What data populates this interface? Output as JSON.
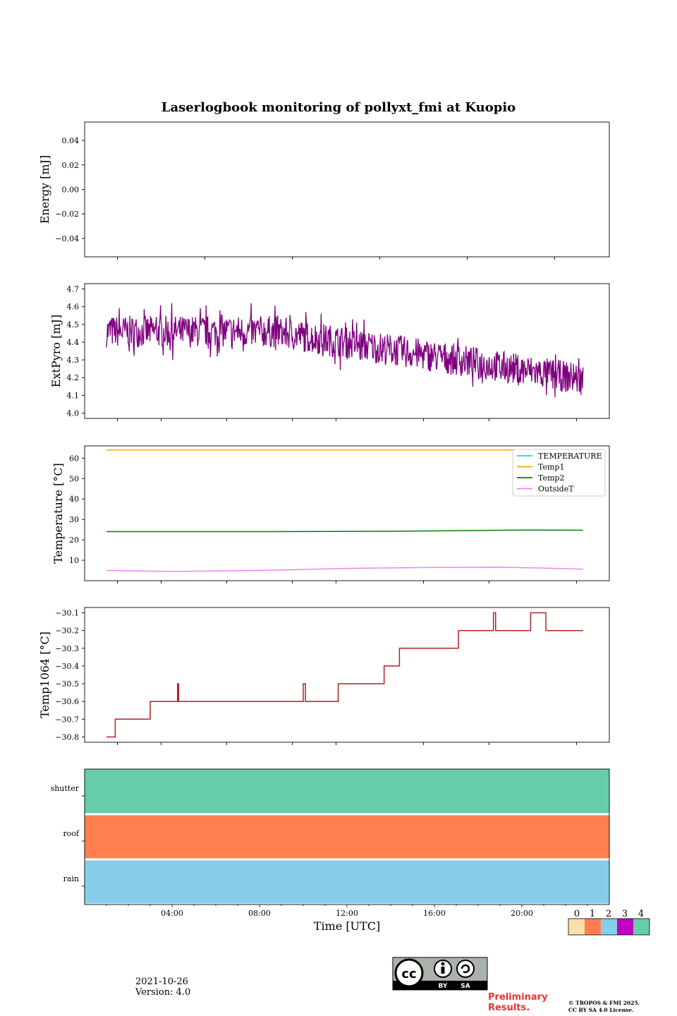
{
  "title": "Laserlogbook monitoring of pollyxt_fmi at Kuopio",
  "footer": {
    "date": "2021-10-26",
    "version": "Version: 4.0",
    "preliminary": "Preliminary Results.",
    "copyright_line1": "© TROPOS & FMI 2025.",
    "copyright_line2": "CC BY SA 4.0 License.",
    "license_badge": "CC BY SA",
    "license_by": "BY",
    "license_sa": "SA"
  },
  "colors": {
    "extpyro": "#800080",
    "temperature": "#00e5ee",
    "temp1": "#ffa500",
    "temp2": "#008000",
    "outsideT": "#ee82ee",
    "temp1064": "#b22222",
    "flag0": "#ffdead",
    "flag1": "#ff7f50",
    "flag2": "#87ceeb",
    "flag3": "#c000c0",
    "flag4": "#66cdaa"
  },
  "chart_data": [
    {
      "type": "line",
      "id": "energy",
      "title": "",
      "ylabel": "Energy [mJ]",
      "ylim": [
        -0.055,
        0.055
      ],
      "yticks": [
        0.04,
        0.02,
        0.0,
        -0.02,
        -0.04
      ],
      "ytick_labels": [
        "0.04",
        "0.02",
        "0.00",
        "−0.02",
        "−0.04"
      ],
      "series": []
    },
    {
      "type": "line",
      "id": "extpyro",
      "ylabel": "ExtPyro [mJ]",
      "ylim": [
        3.97,
        4.73
      ],
      "yticks": [
        4.7,
        4.6,
        4.5,
        4.4,
        4.3,
        4.2,
        4.1,
        4.0
      ],
      "ytick_labels": [
        "4.7",
        "4.6",
        "4.5",
        "4.4",
        "4.3",
        "4.2",
        "4.1",
        "4.0"
      ],
      "x_range_hours": [
        1.0,
        22.8
      ],
      "trend_start": 4.46,
      "trend_end": 4.19,
      "noise_amplitude": 0.09,
      "series_name": "ExtPyro"
    },
    {
      "type": "line",
      "id": "temperature",
      "ylabel": "Temperature [°C]",
      "ylim": [
        0,
        66
      ],
      "yticks": [
        60,
        50,
        40,
        30,
        20,
        10
      ],
      "ytick_labels": [
        "60",
        "50",
        "40",
        "30",
        "20",
        "10"
      ],
      "legend_position": "top-right",
      "series": [
        {
          "name": "TEMPERATURE",
          "x": [],
          "values": []
        },
        {
          "name": "Temp1",
          "x": [
            1.0,
            22.8
          ],
          "values": [
            64.0,
            64.0
          ]
        },
        {
          "name": "Temp2",
          "x": [
            1.0,
            8.0,
            14.0,
            20.0,
            22.8
          ],
          "values": [
            24.0,
            24.0,
            24.2,
            24.8,
            24.7
          ]
        },
        {
          "name": "OutsideT",
          "x": [
            1.0,
            4.0,
            8.0,
            12.0,
            16.0,
            19.0,
            21.0,
            22.8
          ],
          "values": [
            5.0,
            4.5,
            5.0,
            6.0,
            6.5,
            6.6,
            6.2,
            5.6
          ]
        }
      ]
    },
    {
      "type": "line",
      "id": "temp1064",
      "ylabel": "Temp1064 [°C]",
      "ylim": [
        -30.83,
        -30.07
      ],
      "yticks": [
        -30.1,
        -30.2,
        -30.3,
        -30.4,
        -30.5,
        -30.6,
        -30.7,
        -30.8
      ],
      "ytick_labels": [
        "−30.1",
        "−30.2",
        "−30.3",
        "−30.4",
        "−30.5",
        "−30.6",
        "−30.7",
        "−30.8"
      ],
      "series_name": "Temp1064",
      "steps": [
        [
          1.0,
          -30.8
        ],
        [
          1.3,
          -30.8
        ],
        [
          1.4,
          -30.7
        ],
        [
          2.9,
          -30.7
        ],
        [
          3.0,
          -30.6
        ],
        [
          4.2,
          -30.6
        ],
        [
          4.25,
          -30.5
        ],
        [
          4.3,
          -30.6
        ],
        [
          9.9,
          -30.6
        ],
        [
          10.0,
          -30.5
        ],
        [
          10.1,
          -30.6
        ],
        [
          11.5,
          -30.6
        ],
        [
          11.6,
          -30.5
        ],
        [
          13.6,
          -30.5
        ],
        [
          13.7,
          -30.4
        ],
        [
          14.3,
          -30.4
        ],
        [
          14.4,
          -30.3
        ],
        [
          17.0,
          -30.3
        ],
        [
          17.1,
          -30.2
        ],
        [
          18.6,
          -30.2
        ],
        [
          18.7,
          -30.1
        ],
        [
          18.8,
          -30.2
        ],
        [
          20.3,
          -30.2
        ],
        [
          20.4,
          -30.1
        ],
        [
          21.0,
          -30.1
        ],
        [
          21.1,
          -30.2
        ],
        [
          22.8,
          -30.2
        ]
      ]
    },
    {
      "type": "heatmap",
      "id": "flags",
      "xlabel": "Time [UTC]",
      "xlim_hours": [
        0,
        24
      ],
      "xticks": [
        "04:00",
        "08:00",
        "12:00",
        "16:00",
        "20:00"
      ],
      "xtick_hours": [
        4,
        8,
        12,
        16,
        20
      ],
      "rows": [
        {
          "label": "shutter",
          "value": 4
        },
        {
          "label": "roof",
          "value": 1
        },
        {
          "label": "rain",
          "value": 2
        }
      ],
      "colorbar_labels": [
        "0",
        "1",
        "2",
        "3",
        "4"
      ]
    }
  ]
}
